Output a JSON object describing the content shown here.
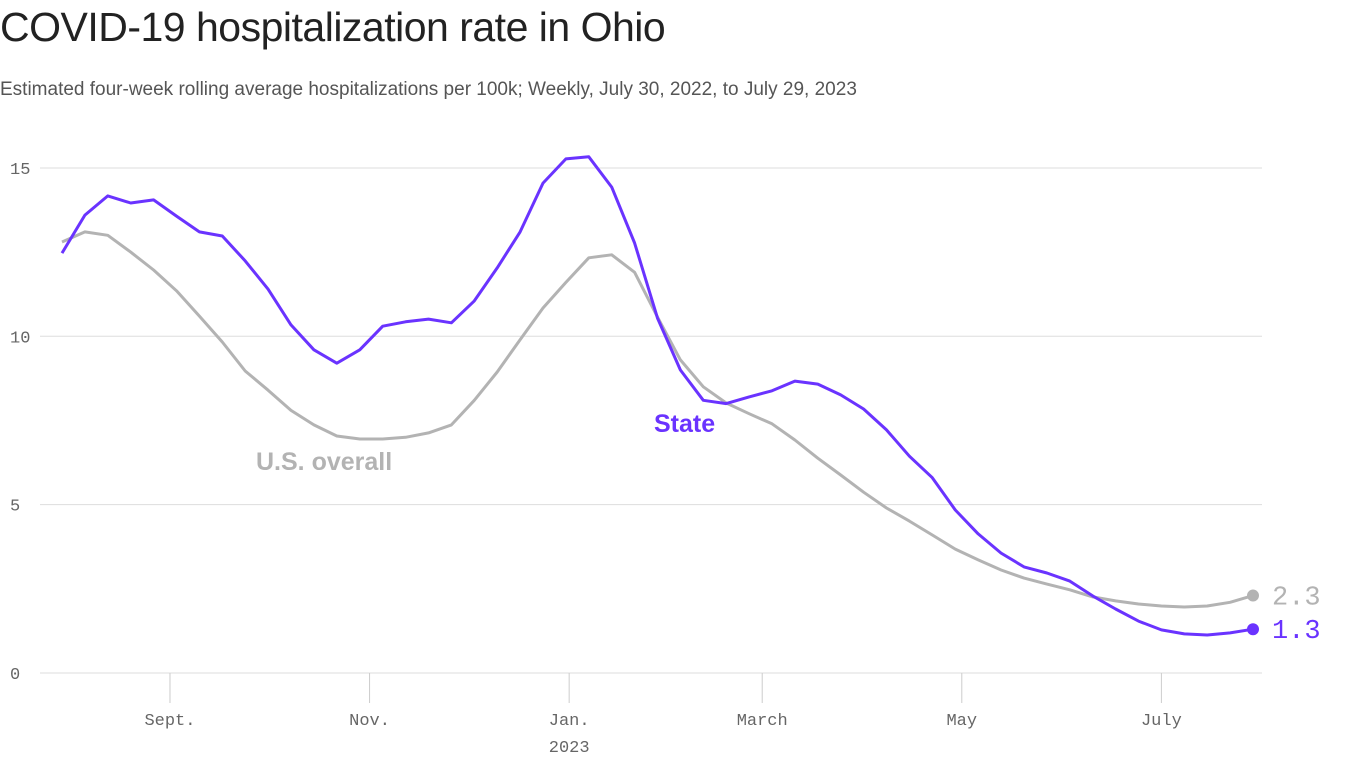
{
  "title": "COVID-19 hospitalization rate in Ohio",
  "subtitle": "Estimated four-week rolling average hospitalizations per 100k; Weekly, July 30, 2022, to July 29, 2023",
  "chart_data": {
    "type": "line",
    "title": "COVID-19 hospitalization rate in Ohio",
    "subtitle": "Estimated four-week rolling average hospitalizations per 100k; Weekly, July 30, 2022, to July 29, 2023",
    "x_start": "2022-07-30",
    "x_end": "2023-07-29",
    "x_frequency": "weekly",
    "ylim": [
      0,
      16
    ],
    "y_ticks": [
      0,
      5,
      10,
      15
    ],
    "x_ticks": [
      {
        "date": "2022-09-01",
        "label": "Sept."
      },
      {
        "date": "2022-11-01",
        "label": "Nov."
      },
      {
        "date": "2023-01-01",
        "label": "Jan.",
        "sublabel": "2023"
      },
      {
        "date": "2023-03-01",
        "label": "March"
      },
      {
        "date": "2023-05-01",
        "label": "May"
      },
      {
        "date": "2023-07-01",
        "label": "July"
      }
    ],
    "grid": "horizontal",
    "series": [
      {
        "name": "U.S. overall",
        "color": "#b3b3b3",
        "end_label": "2.3",
        "values": [
          12.8,
          13.1,
          13.0,
          12.5,
          11.97,
          11.35,
          10.6,
          9.83,
          8.97,
          8.4,
          7.8,
          7.37,
          7.04,
          6.95,
          6.95,
          7.0,
          7.13,
          7.37,
          8.1,
          8.94,
          9.9,
          10.84,
          11.6,
          12.33,
          12.42,
          11.9,
          10.57,
          9.3,
          8.5,
          8.02,
          7.7,
          7.4,
          6.92,
          6.38,
          5.88,
          5.37,
          4.9,
          4.51,
          4.1,
          3.68,
          3.36,
          3.06,
          2.82,
          2.64,
          2.47,
          2.26,
          2.14,
          2.05,
          1.99,
          1.96,
          1.99,
          2.1,
          2.3
        ]
      },
      {
        "name": "State",
        "color": "#6a33ff",
        "end_label": "1.3",
        "values": [
          12.47,
          13.6,
          14.17,
          13.96,
          14.05,
          13.57,
          13.1,
          12.98,
          12.24,
          11.4,
          10.34,
          9.6,
          9.2,
          9.6,
          10.3,
          10.43,
          10.51,
          10.4,
          11.05,
          12.03,
          13.1,
          14.55,
          15.27,
          15.33,
          14.43,
          12.77,
          10.54,
          9.0,
          8.1,
          8.0,
          8.2,
          8.38,
          8.67,
          8.58,
          8.26,
          7.84,
          7.22,
          6.44,
          5.8,
          4.84,
          4.13,
          3.56,
          3.15,
          2.97,
          2.73,
          2.29,
          1.9,
          1.54,
          1.28,
          1.16,
          1.13,
          1.19,
          1.3
        ]
      }
    ]
  }
}
